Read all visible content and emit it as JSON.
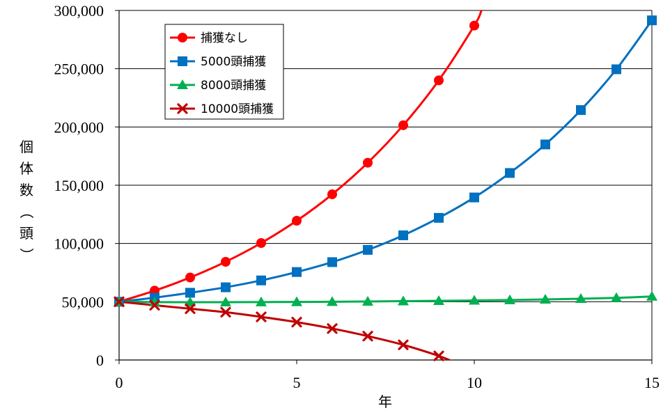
{
  "chart_data": {
    "type": "line",
    "xlabel": "年",
    "ylabel": "個体数（頭）",
    "xlim": [
      0,
      15
    ],
    "ylim": [
      0,
      300000
    ],
    "xticks": [
      0,
      5,
      10,
      15
    ],
    "xtick_labels": [
      "0",
      "5",
      "10",
      "15"
    ],
    "yticks": [
      0,
      50000,
      100000,
      150000,
      200000,
      250000,
      300000
    ],
    "ytick_labels": [
      "0",
      "50,000",
      "100,000",
      "150,000",
      "200,000",
      "250,000",
      "300,000"
    ],
    "grid": "horizontal",
    "legend_position": "top-left",
    "series": [
      {
        "name": "捕獲なし",
        "color": "#ff0000",
        "marker": "circle",
        "x": [
          0,
          1,
          2,
          3,
          4,
          5,
          6,
          7,
          8,
          9,
          10,
          10.2
        ],
        "y": [
          50000,
          59500,
          70800,
          84300,
          100400,
          119500,
          142200,
          169300,
          201500,
          240000,
          287000,
          300000
        ],
        "marker_count": 11
      },
      {
        "name": "5000頭捕獲",
        "color": "#0070c0",
        "marker": "square",
        "x": [
          0,
          1,
          2,
          3,
          4,
          5,
          6,
          7,
          8,
          9,
          10,
          11,
          12,
          13,
          14,
          15
        ],
        "y": [
          50000,
          53500,
          57700,
          62400,
          68300,
          75500,
          84000,
          94500,
          107000,
          122000,
          139500,
          160500,
          185000,
          214500,
          249500,
          291500
        ],
        "marker_count": 16
      },
      {
        "name": "8000頭捕獲",
        "color": "#00b050",
        "marker": "triangle",
        "x": [
          0,
          1,
          2,
          3,
          4,
          5,
          6,
          7,
          8,
          9,
          10,
          11,
          12,
          13,
          14,
          15
        ],
        "y": [
          50000,
          49700,
          49600,
          49600,
          49700,
          49800,
          50000,
          50200,
          50500,
          50800,
          51100,
          51500,
          52000,
          52600,
          53300,
          54500
        ],
        "marker_count": 16
      },
      {
        "name": "10000頭捕獲",
        "color": "#c00000",
        "marker": "x",
        "x": [
          0,
          1,
          2,
          3,
          4,
          5,
          6,
          7,
          8,
          9,
          9.45
        ],
        "y": [
          50000,
          47000,
          44000,
          41000,
          37000,
          32500,
          27000,
          20500,
          13000,
          3500,
          -2000
        ],
        "marker_count": 10
      }
    ]
  }
}
